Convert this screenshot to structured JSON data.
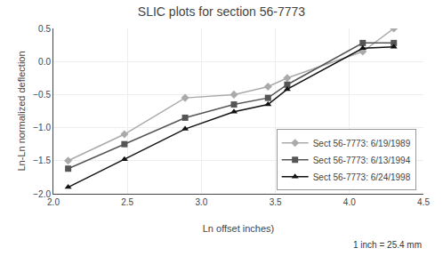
{
  "chart_data": {
    "type": "line",
    "title": "SLIC plots for section 56-7773",
    "xlabel": "Ln offset inches)",
    "ylabel": "Ln-Ln normalized deflection",
    "annotations": [
      "1 inch = 25.4 mm"
    ],
    "xlim": [
      2.0,
      4.5
    ],
    "ylim": [
      -2.0,
      0.5
    ],
    "xticks": [
      {
        "value": 2.0,
        "label": "2.0"
      },
      2.5,
      {
        "value": 3.0,
        "label": "3.0"
      },
      3.5,
      {
        "value": 4.0,
        "label": "4.0"
      },
      4.5
    ],
    "yticks": [
      {
        "value": -2.0,
        "label": "−2.0"
      },
      {
        "value": -1.5,
        "label": "−1.5"
      },
      {
        "value": -1.0,
        "label": "−1.0"
      },
      {
        "value": -0.5,
        "label": "−0.5"
      },
      {
        "value": 0.0,
        "label": "0.0"
      },
      0.5
    ],
    "grid": true,
    "legend": "lower right",
    "series": [
      {
        "name": "Sect 56-7773: 6/19/1989",
        "color": "#aaaaaa",
        "marker": "diamond",
        "line_style": "solid",
        "x": [
          2.1,
          2.48,
          2.89,
          3.22,
          3.45,
          3.58,
          4.09,
          4.3
        ],
        "values": [
          -1.5,
          -1.1,
          -0.55,
          -0.5,
          -0.38,
          -0.25,
          0.15,
          0.5
        ]
      },
      {
        "name": "Sect 56-7773: 6/13/1994",
        "color": "#555555",
        "marker": "square",
        "line_style": "solid",
        "x": [
          2.1,
          2.48,
          2.89,
          3.22,
          3.45,
          3.58,
          4.09,
          4.3
        ],
        "values": [
          -1.62,
          -1.25,
          -0.85,
          -0.65,
          -0.55,
          -0.35,
          0.28,
          0.28
        ]
      },
      {
        "name": "Sect 56-7773: 6/24/1998",
        "color": "#111111",
        "marker": "triangle-up",
        "line_style": "solid",
        "x": [
          2.1,
          2.48,
          2.89,
          3.22,
          3.45,
          3.58,
          4.09,
          4.3
        ],
        "values": [
          -1.9,
          -1.48,
          -1.02,
          -0.76,
          -0.65,
          -0.42,
          0.2,
          0.22
        ]
      }
    ]
  }
}
